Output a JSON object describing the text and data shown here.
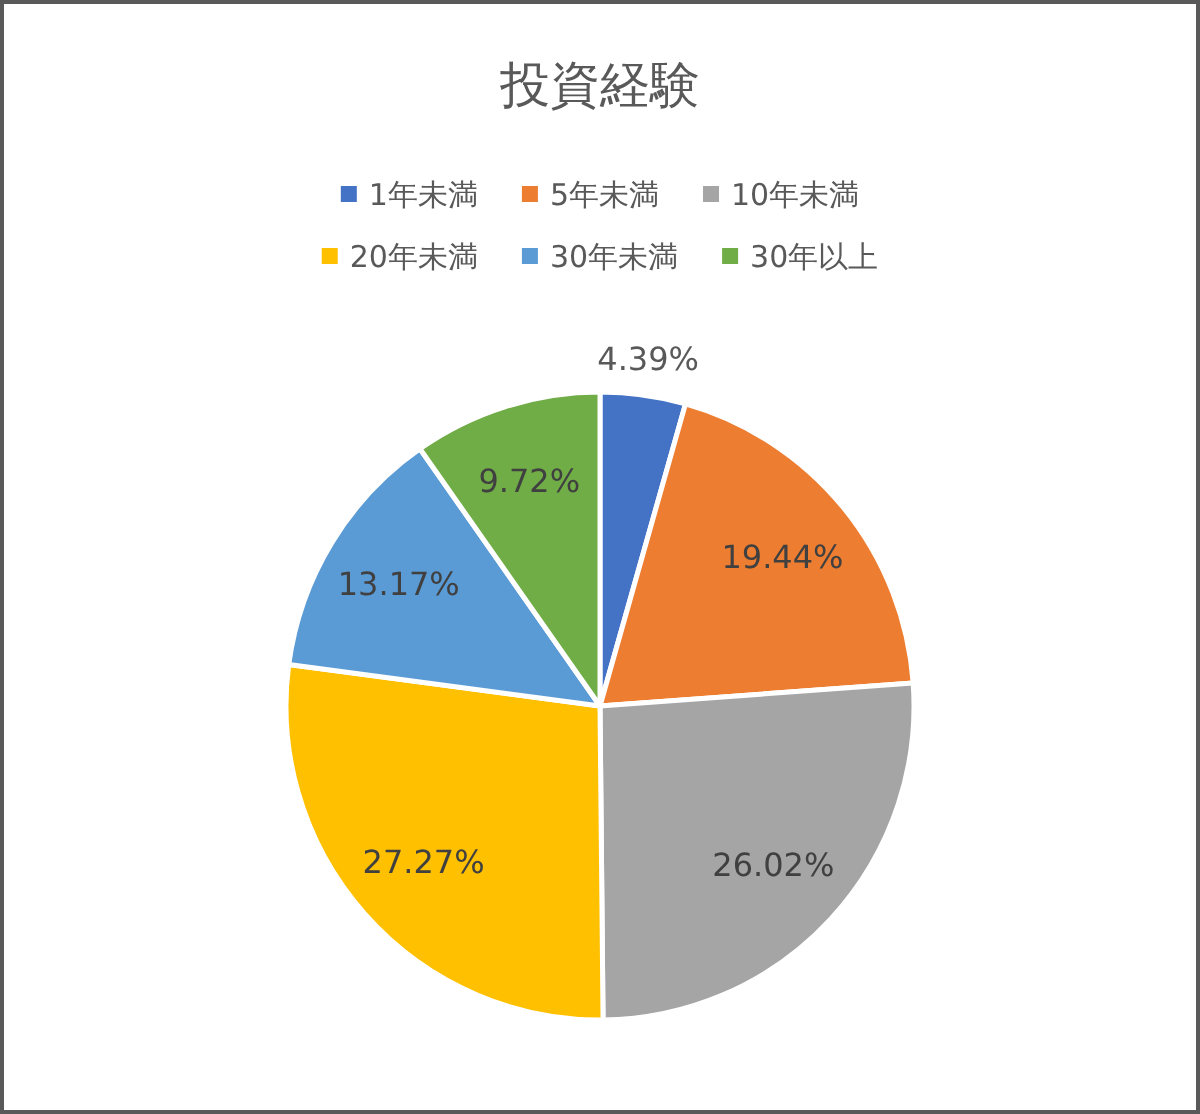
{
  "chart_data": {
    "type": "pie",
    "title": "投資経験",
    "categories": [
      "1年未満",
      "5年未満",
      "10年未満",
      "20年未満",
      "30年未満",
      "30年以上"
    ],
    "values": [
      4.39,
      19.44,
      26.02,
      27.27,
      13.17,
      9.72
    ],
    "colors": [
      "#4472c4",
      "#ed7d31",
      "#a5a5a5",
      "#ffc000",
      "#5b9bd5",
      "#70ad47"
    ],
    "value_labels": [
      "4.39%",
      "19.44%",
      "26.02%",
      "27.27%",
      "13.17%",
      "9.72%"
    ],
    "legend": "top"
  }
}
